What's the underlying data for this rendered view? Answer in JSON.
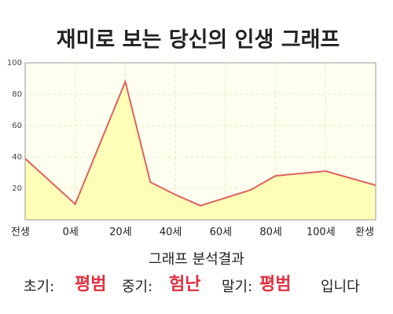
{
  "chart_data": {
    "type": "line",
    "title": "재미로 보는 당신의 인생 그래프",
    "x": [
      -20,
      0,
      20,
      30,
      40,
      50,
      60,
      70,
      80,
      100,
      120
    ],
    "series": [
      {
        "color": "#e06060",
        "fill": "#ffffb8",
        "values": [
          39,
          10,
          88,
          24,
          16,
          9,
          14,
          19,
          28,
          31,
          22
        ]
      }
    ],
    "xlim": [
      -20,
      120
    ],
    "xticks": [
      {
        "value": -20,
        "label": "전생"
      },
      {
        "value": 0,
        "label": "0세"
      },
      {
        "value": 20,
        "label": "20세"
      },
      {
        "value": 40,
        "label": "40세"
      },
      {
        "value": 60,
        "label": "60세"
      },
      {
        "value": 80,
        "label": "80세"
      },
      {
        "value": 100,
        "label": "100세"
      },
      {
        "value": 120,
        "label": "환생"
      }
    ],
    "ylim": [
      0,
      100
    ],
    "yticks": [
      20,
      40,
      60,
      80,
      100
    ],
    "grid": true
  },
  "analysis": {
    "heading": "그래프 분석결과",
    "items": [
      {
        "label": "초기:",
        "value": "평범"
      },
      {
        "label": "중기:",
        "value": "험난"
      },
      {
        "label": "말기:",
        "value": "평범"
      }
    ],
    "ending": "입니다"
  }
}
